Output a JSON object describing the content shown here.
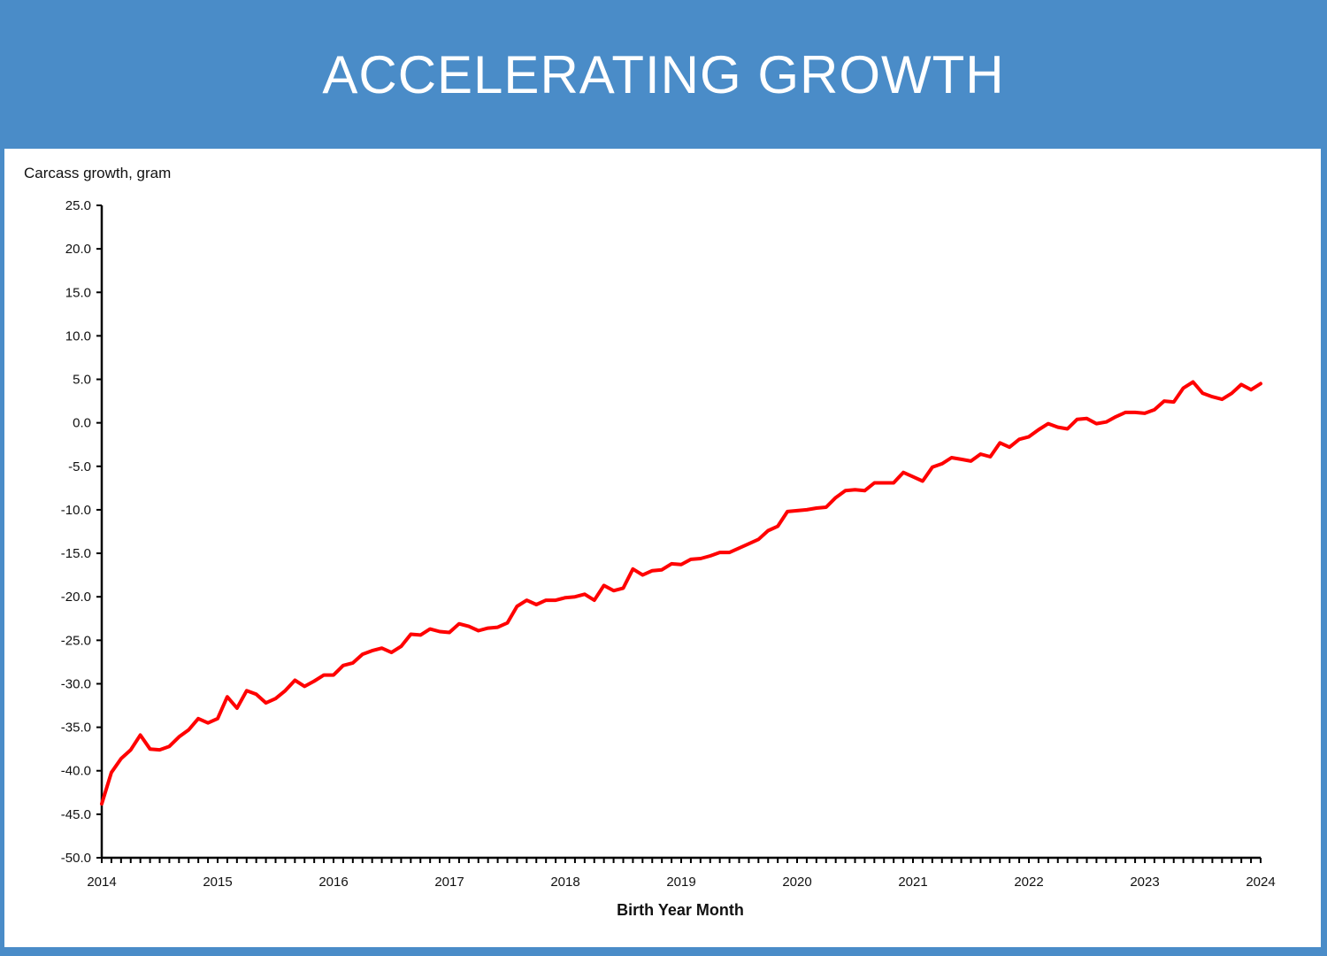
{
  "banner": {
    "title": "ACCELERATING GROWTH"
  },
  "chart_data": {
    "type": "line",
    "title": "",
    "ylabel": "Carcass growth, gram",
    "xlabel": "Birth Year Month",
    "ylim": [
      -50,
      25
    ],
    "yticks": [
      "25.0",
      "20.0",
      "15.0",
      "10.0",
      "5.0",
      "0.0",
      "-5.0",
      "-10.0",
      "-15.0",
      "-20.0",
      "-25.0",
      "-30.0",
      "-35.0",
      "-40.0",
      "-45.0",
      "-50.0"
    ],
    "xlim": [
      2014,
      2024
    ],
    "xticks": [
      "2014",
      "2015",
      "2016",
      "2017",
      "2018",
      "2019",
      "2020",
      "2021",
      "2022",
      "2023",
      "2024"
    ],
    "grid": false,
    "line_color": "#ff0000",
    "series": [
      {
        "x": [
          2014.0,
          2014.083,
          2014.167,
          2014.25,
          2014.333,
          2014.417,
          2014.5,
          2014.583,
          2014.667,
          2014.75,
          2014.833,
          2014.917,
          2015.0,
          2015.083,
          2015.167,
          2015.25,
          2015.333,
          2015.417,
          2015.5,
          2015.583,
          2015.667,
          2015.75,
          2015.833,
          2015.917,
          2016.0,
          2016.083,
          2016.167,
          2016.25,
          2016.333,
          2016.417,
          2016.5,
          2016.583,
          2016.667,
          2016.75,
          2016.833,
          2016.917,
          2017.0,
          2017.083,
          2017.167,
          2017.25,
          2017.333,
          2017.417,
          2017.5,
          2017.583,
          2017.667,
          2017.75,
          2017.833,
          2017.917,
          2018.0,
          2018.083,
          2018.167,
          2018.25,
          2018.333,
          2018.417,
          2018.5,
          2018.583,
          2018.667,
          2018.75,
          2018.833,
          2018.917,
          2019.0,
          2019.083,
          2019.167,
          2019.25,
          2019.333,
          2019.417,
          2019.5,
          2019.583,
          2019.667,
          2019.75,
          2019.833,
          2019.917,
          2020.0,
          2020.083,
          2020.167,
          2020.25,
          2020.333,
          2020.417,
          2020.5,
          2020.583,
          2020.667,
          2020.75,
          2020.833,
          2020.917,
          2021.0,
          2021.083,
          2021.167,
          2021.25,
          2021.333,
          2021.417,
          2021.5,
          2021.583,
          2021.667,
          2021.75,
          2021.833,
          2021.917,
          2022.0,
          2022.083,
          2022.167,
          2022.25,
          2022.333,
          2022.417,
          2022.5,
          2022.583,
          2022.667,
          2022.75,
          2022.833,
          2022.917,
          2023.0,
          2023.083,
          2023.167,
          2023.25,
          2023.333,
          2023.417,
          2023.5,
          2023.583,
          2023.667,
          2023.75,
          2023.833,
          2023.917,
          2024.0
        ],
        "values": [
          -43.8,
          -40.2,
          -38.6,
          -37.6,
          -35.9,
          -37.5,
          -37.6,
          -37.2,
          -36.1,
          -35.3,
          -34.0,
          -34.5,
          -34.0,
          -31.5,
          -32.8,
          -30.8,
          -31.2,
          -32.2,
          -31.7,
          -30.8,
          -29.6,
          -30.3,
          -29.7,
          -29.0,
          -29.0,
          -27.9,
          -27.6,
          -26.6,
          -26.2,
          -25.9,
          -26.4,
          -25.7,
          -24.3,
          -24.4,
          -23.7,
          -24.0,
          -24.1,
          -23.1,
          -23.4,
          -23.9,
          -23.6,
          -23.5,
          -23.0,
          -21.1,
          -20.4,
          -20.9,
          -20.4,
          -20.4,
          -20.1,
          -20.0,
          -19.7,
          -20.4,
          -18.7,
          -19.3,
          -19.0,
          -16.8,
          -17.5,
          -17.0,
          -16.9,
          -16.2,
          -16.3,
          -15.7,
          -15.6,
          -15.3,
          -14.9,
          -14.9,
          -14.4,
          -13.9,
          -13.4,
          -12.4,
          -11.9,
          -10.2,
          -10.1,
          -10.0,
          -9.8,
          -9.7,
          -8.6,
          -7.8,
          -7.7,
          -7.8,
          -6.9,
          -6.9,
          -6.9,
          -5.7,
          -6.2,
          -6.7,
          -5.1,
          -4.7,
          -4.0,
          -4.2,
          -4.4,
          -3.6,
          -3.9,
          -2.3,
          -2.8,
          -1.9,
          -1.6,
          -0.8,
          -0.1,
          -0.5,
          -0.7,
          0.4,
          0.5,
          -0.1,
          0.1,
          0.7,
          1.2,
          1.2,
          1.1,
          1.5,
          2.5,
          2.4,
          4.0,
          4.7,
          3.4,
          3.0,
          2.7,
          3.4,
          4.4,
          3.8,
          4.5
        ]
      }
    ]
  }
}
